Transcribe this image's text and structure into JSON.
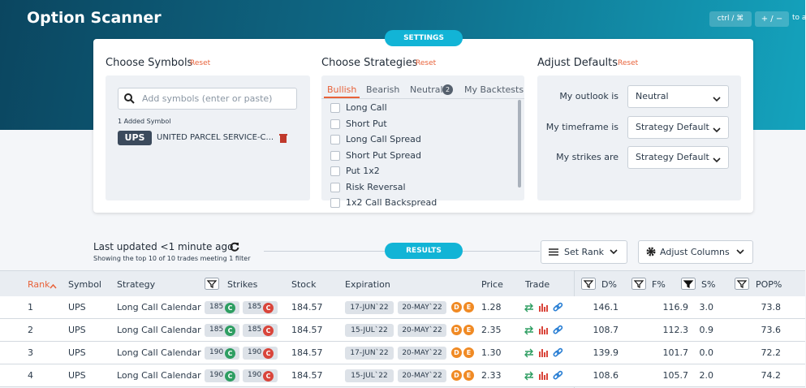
{
  "header": {
    "title": "Option Scanner",
    "shortcuts": [
      "ctrl / ⌘",
      "+ / −"
    ],
    "shortcut_hint": "to a"
  },
  "settings_label": "SETTINGS",
  "symbols": {
    "title": "Choose Symbols",
    "reset": "Reset",
    "placeholder": "Add symbols (enter or paste)",
    "count_label": "1 Added Symbol",
    "items": [
      {
        "ticker": "UPS",
        "name": "UNITED PARCEL SERVICE-C..."
      }
    ]
  },
  "strategies": {
    "title": "Choose Strategies",
    "reset": "Reset",
    "tabs": [
      {
        "label": "Bullish"
      },
      {
        "label": "Bearish"
      },
      {
        "label": "Neutral",
        "badge": "2"
      },
      {
        "label": "My Backtests"
      }
    ],
    "items": [
      "Long Call",
      "Short Put",
      "Long Call Spread",
      "Short Put Spread",
      "Put 1x2",
      "Risk Reversal",
      "1x2 Call Backspread"
    ]
  },
  "defaults": {
    "title": "Adjust Defaults",
    "reset": "Reset",
    "fields": [
      {
        "label": "My outlook is",
        "value": "Neutral"
      },
      {
        "label": "My timeframe is",
        "value": "Strategy Default"
      },
      {
        "label": "My strikes are",
        "value": "Strategy Default"
      }
    ]
  },
  "results": {
    "last_updated": "Last updated <1 minute ago",
    "summary": "Showing the top 10 of 10 trades meeting 1 filter",
    "label": "RESULTS",
    "set_rank": "Set Rank",
    "adjust_columns": "Adjust Columns"
  },
  "expiration_badges": [
    "D",
    "E"
  ],
  "table": {
    "columns": [
      "Rank",
      "Symbol",
      "Strategy",
      "Strikes",
      "Stock",
      "Expiration",
      "Price",
      "Trade",
      "D%",
      "F%",
      "S%",
      "POP%"
    ],
    "rows": [
      {
        "rank": "1",
        "symbol": "UPS",
        "strategy": "Long Call Calendar",
        "strikes": [
          {
            "strike": "185",
            "type": "C"
          },
          {
            "strike": "185",
            "type": "C"
          }
        ],
        "stock": "184.57",
        "expirations": [
          "17-JUN`22",
          "20-MAY`22"
        ],
        "price": "1.28",
        "d": "146.1",
        "f": "116.9",
        "s": "3.0",
        "pop": "73.8"
      },
      {
        "rank": "2",
        "symbol": "UPS",
        "strategy": "Long Call Calendar",
        "strikes": [
          {
            "strike": "185",
            "type": "C"
          },
          {
            "strike": "185",
            "type": "C"
          }
        ],
        "stock": "184.57",
        "expirations": [
          "15-JUL`22",
          "20-MAY`22"
        ],
        "price": "2.35",
        "d": "108.7",
        "f": "112.3",
        "s": "0.9",
        "pop": "73.6"
      },
      {
        "rank": "3",
        "symbol": "UPS",
        "strategy": "Long Call Calendar",
        "strikes": [
          {
            "strike": "190",
            "type": "C"
          },
          {
            "strike": "190",
            "type": "C"
          }
        ],
        "stock": "184.57",
        "expirations": [
          "17-JUN`22",
          "20-MAY`22"
        ],
        "price": "1.30",
        "d": "139.9",
        "f": "101.7",
        "s": "0.0",
        "pop": "72.2"
      },
      {
        "rank": "4",
        "symbol": "UPS",
        "strategy": "Long Call Calendar",
        "strikes": [
          {
            "strike": "190",
            "type": "C"
          },
          {
            "strike": "190",
            "type": "C"
          }
        ],
        "stock": "184.57",
        "expirations": [
          "15-JUL`22",
          "20-MAY`22"
        ],
        "price": "2.33",
        "d": "108.6",
        "f": "105.7",
        "s": "2.0",
        "pop": "74.2"
      }
    ]
  }
}
